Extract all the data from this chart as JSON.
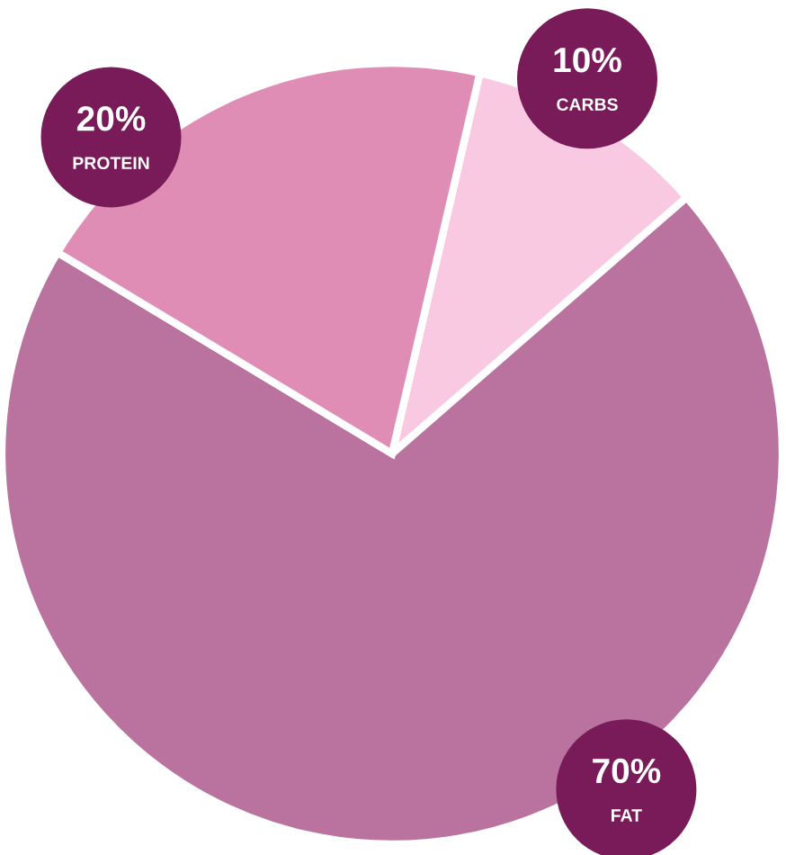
{
  "chart_data": {
    "type": "pie",
    "categories": [
      "CARBS",
      "FAT",
      "PROTEIN"
    ],
    "values": [
      10,
      70,
      20
    ],
    "value_labels": [
      "10%",
      "70%",
      "20%"
    ],
    "colors": [
      "#f9c9e1",
      "#b9739e",
      "#e08db5"
    ]
  }
}
